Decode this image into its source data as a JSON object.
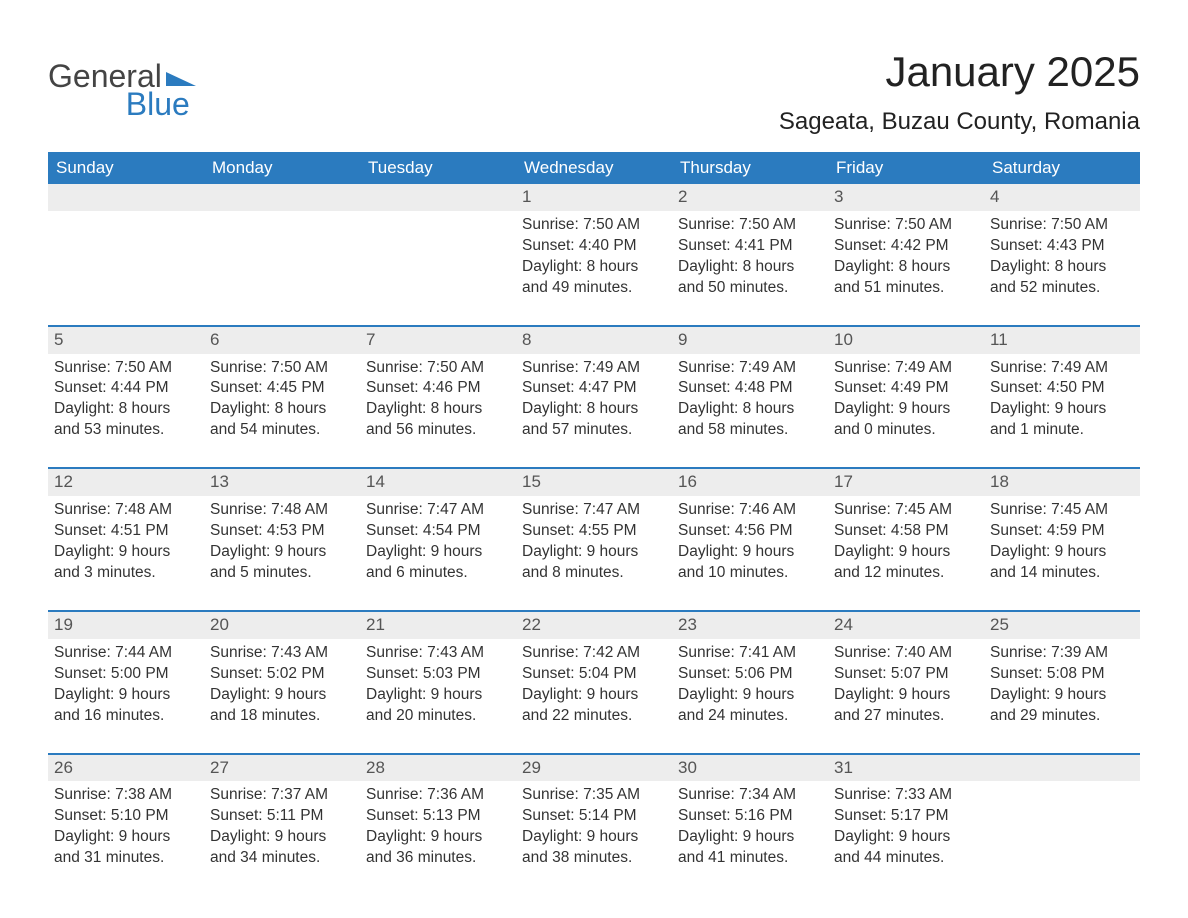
{
  "brand": {
    "part1": "General",
    "part2": "Blue"
  },
  "title": "January 2025",
  "location": "Sageata, Buzau County, Romania",
  "style": {
    "header_bg": "#2b7bbf",
    "header_fg": "#ffffff",
    "row_sep_color": "#2b7bbf",
    "daynum_bg": "#ededed",
    "text_color": "#333333",
    "page_bg": "#ffffff",
    "title_fontsize": 42,
    "location_fontsize": 24,
    "header_fontsize": 17,
    "cell_fontsize": 15.5
  },
  "weekdays": [
    "Sunday",
    "Monday",
    "Tuesday",
    "Wednesday",
    "Thursday",
    "Friday",
    "Saturday"
  ],
  "weeks": [
    [
      {
        "day": "",
        "text": ""
      },
      {
        "day": "",
        "text": ""
      },
      {
        "day": "",
        "text": ""
      },
      {
        "day": "1",
        "text": "Sunrise: 7:50 AM\nSunset: 4:40 PM\nDaylight: 8 hours and 49 minutes."
      },
      {
        "day": "2",
        "text": "Sunrise: 7:50 AM\nSunset: 4:41 PM\nDaylight: 8 hours and 50 minutes."
      },
      {
        "day": "3",
        "text": "Sunrise: 7:50 AM\nSunset: 4:42 PM\nDaylight: 8 hours and 51 minutes."
      },
      {
        "day": "4",
        "text": "Sunrise: 7:50 AM\nSunset: 4:43 PM\nDaylight: 8 hours and 52 minutes."
      }
    ],
    [
      {
        "day": "5",
        "text": "Sunrise: 7:50 AM\nSunset: 4:44 PM\nDaylight: 8 hours and 53 minutes."
      },
      {
        "day": "6",
        "text": "Sunrise: 7:50 AM\nSunset: 4:45 PM\nDaylight: 8 hours and 54 minutes."
      },
      {
        "day": "7",
        "text": "Sunrise: 7:50 AM\nSunset: 4:46 PM\nDaylight: 8 hours and 56 minutes."
      },
      {
        "day": "8",
        "text": "Sunrise: 7:49 AM\nSunset: 4:47 PM\nDaylight: 8 hours and 57 minutes."
      },
      {
        "day": "9",
        "text": "Sunrise: 7:49 AM\nSunset: 4:48 PM\nDaylight: 8 hours and 58 minutes."
      },
      {
        "day": "10",
        "text": "Sunrise: 7:49 AM\nSunset: 4:49 PM\nDaylight: 9 hours and 0 minutes."
      },
      {
        "day": "11",
        "text": "Sunrise: 7:49 AM\nSunset: 4:50 PM\nDaylight: 9 hours and 1 minute."
      }
    ],
    [
      {
        "day": "12",
        "text": "Sunrise: 7:48 AM\nSunset: 4:51 PM\nDaylight: 9 hours and 3 minutes."
      },
      {
        "day": "13",
        "text": "Sunrise: 7:48 AM\nSunset: 4:53 PM\nDaylight: 9 hours and 5 minutes."
      },
      {
        "day": "14",
        "text": "Sunrise: 7:47 AM\nSunset: 4:54 PM\nDaylight: 9 hours and 6 minutes."
      },
      {
        "day": "15",
        "text": "Sunrise: 7:47 AM\nSunset: 4:55 PM\nDaylight: 9 hours and 8 minutes."
      },
      {
        "day": "16",
        "text": "Sunrise: 7:46 AM\nSunset: 4:56 PM\nDaylight: 9 hours and 10 minutes."
      },
      {
        "day": "17",
        "text": "Sunrise: 7:45 AM\nSunset: 4:58 PM\nDaylight: 9 hours and 12 minutes."
      },
      {
        "day": "18",
        "text": "Sunrise: 7:45 AM\nSunset: 4:59 PM\nDaylight: 9 hours and 14 minutes."
      }
    ],
    [
      {
        "day": "19",
        "text": "Sunrise: 7:44 AM\nSunset: 5:00 PM\nDaylight: 9 hours and 16 minutes."
      },
      {
        "day": "20",
        "text": "Sunrise: 7:43 AM\nSunset: 5:02 PM\nDaylight: 9 hours and 18 minutes."
      },
      {
        "day": "21",
        "text": "Sunrise: 7:43 AM\nSunset: 5:03 PM\nDaylight: 9 hours and 20 minutes."
      },
      {
        "day": "22",
        "text": "Sunrise: 7:42 AM\nSunset: 5:04 PM\nDaylight: 9 hours and 22 minutes."
      },
      {
        "day": "23",
        "text": "Sunrise: 7:41 AM\nSunset: 5:06 PM\nDaylight: 9 hours and 24 minutes."
      },
      {
        "day": "24",
        "text": "Sunrise: 7:40 AM\nSunset: 5:07 PM\nDaylight: 9 hours and 27 minutes."
      },
      {
        "day": "25",
        "text": "Sunrise: 7:39 AM\nSunset: 5:08 PM\nDaylight: 9 hours and 29 minutes."
      }
    ],
    [
      {
        "day": "26",
        "text": "Sunrise: 7:38 AM\nSunset: 5:10 PM\nDaylight: 9 hours and 31 minutes."
      },
      {
        "day": "27",
        "text": "Sunrise: 7:37 AM\nSunset: 5:11 PM\nDaylight: 9 hours and 34 minutes."
      },
      {
        "day": "28",
        "text": "Sunrise: 7:36 AM\nSunset: 5:13 PM\nDaylight: 9 hours and 36 minutes."
      },
      {
        "day": "29",
        "text": "Sunrise: 7:35 AM\nSunset: 5:14 PM\nDaylight: 9 hours and 38 minutes."
      },
      {
        "day": "30",
        "text": "Sunrise: 7:34 AM\nSunset: 5:16 PM\nDaylight: 9 hours and 41 minutes."
      },
      {
        "day": "31",
        "text": "Sunrise: 7:33 AM\nSunset: 5:17 PM\nDaylight: 9 hours and 44 minutes."
      },
      {
        "day": "",
        "text": ""
      }
    ]
  ]
}
